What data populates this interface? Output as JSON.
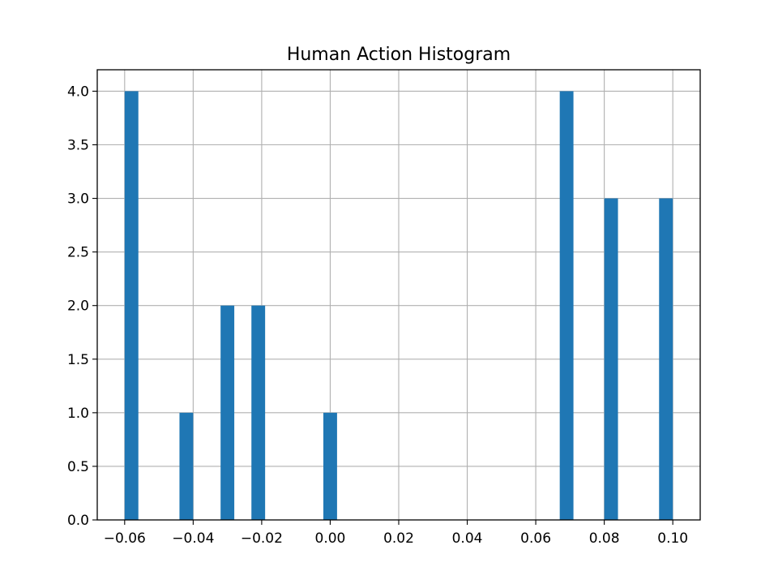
{
  "chart_data": {
    "type": "bar",
    "title": "Human Action Histogram",
    "xlabel": "",
    "ylabel": "",
    "xlim": [
      -0.068,
      0.108
    ],
    "ylim": [
      0,
      4.2
    ],
    "grid": true,
    "bar_color": "#1f77b4",
    "bin_width": 0.004,
    "bars": [
      {
        "x0": -0.06,
        "x1": -0.056,
        "value": 4
      },
      {
        "x0": -0.044,
        "x1": -0.04,
        "value": 1
      },
      {
        "x0": -0.032,
        "x1": -0.028,
        "value": 2
      },
      {
        "x0": -0.023,
        "x1": -0.019,
        "value": 2
      },
      {
        "x0": -0.002,
        "x1": 0.002,
        "value": 1
      },
      {
        "x0": 0.067,
        "x1": 0.071,
        "value": 4
      },
      {
        "x0": 0.08,
        "x1": 0.084,
        "value": 3
      },
      {
        "x0": 0.096,
        "x1": 0.1,
        "value": 3
      }
    ],
    "x_ticks": [
      -0.06,
      -0.04,
      -0.02,
      0.0,
      0.02,
      0.04,
      0.06,
      0.08,
      0.1
    ],
    "x_tick_labels": [
      "−0.06",
      "−0.04",
      "−0.02",
      "0.00",
      "0.02",
      "0.04",
      "0.06",
      "0.08",
      "0.10"
    ],
    "y_ticks": [
      0,
      0.5,
      1,
      1.5,
      2,
      2.5,
      3,
      3.5,
      4
    ],
    "y_tick_labels": [
      "0.0",
      "0.5",
      "1.0",
      "1.5",
      "2.0",
      "2.5",
      "3.0",
      "3.5",
      "4.0"
    ]
  }
}
